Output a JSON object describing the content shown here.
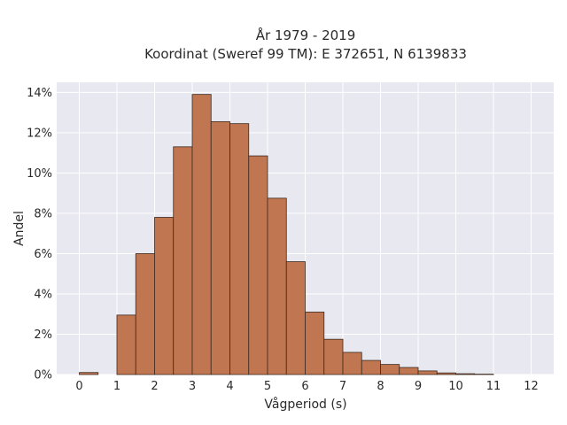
{
  "chart_data": {
    "type": "bar",
    "title_line1": "År 1979 - 2019",
    "title_line2": "Koordinat (Sweref 99 TM): E 372651, N 6139833",
    "xlabel": "Vågperiod (s)",
    "ylabel": "Andel",
    "xlim": [
      -0.6,
      12.6
    ],
    "ylim": [
      0,
      14.5
    ],
    "x_ticks": [
      0,
      1,
      2,
      3,
      4,
      5,
      6,
      7,
      8,
      9,
      10,
      11,
      12
    ],
    "x_tick_labels": [
      "0",
      "1",
      "2",
      "3",
      "4",
      "5",
      "6",
      "7",
      "8",
      "9",
      "10",
      "11",
      "12"
    ],
    "y_ticks": [
      0,
      2,
      4,
      6,
      8,
      10,
      12,
      14
    ],
    "y_tick_labels": [
      "0%",
      "2%",
      "4%",
      "6%",
      "8%",
      "10%",
      "12%",
      "14%"
    ],
    "grid": true,
    "bin_width": 0.5,
    "bins": [
      {
        "start": 0.0,
        "end": 0.5,
        "value": 0.1
      },
      {
        "start": 1.0,
        "end": 1.5,
        "value": 2.95
      },
      {
        "start": 1.5,
        "end": 2.0,
        "value": 6.0
      },
      {
        "start": 2.0,
        "end": 2.5,
        "value": 7.8
      },
      {
        "start": 2.5,
        "end": 3.0,
        "value": 11.3
      },
      {
        "start": 3.0,
        "end": 3.5,
        "value": 13.9
      },
      {
        "start": 3.5,
        "end": 4.0,
        "value": 12.55
      },
      {
        "start": 4.0,
        "end": 4.5,
        "value": 12.45
      },
      {
        "start": 4.5,
        "end": 5.0,
        "value": 10.85
      },
      {
        "start": 5.0,
        "end": 5.5,
        "value": 8.75
      },
      {
        "start": 5.5,
        "end": 6.0,
        "value": 5.6
      },
      {
        "start": 6.0,
        "end": 6.5,
        "value": 3.1
      },
      {
        "start": 6.5,
        "end": 7.0,
        "value": 1.75
      },
      {
        "start": 7.0,
        "end": 7.5,
        "value": 1.1
      },
      {
        "start": 7.5,
        "end": 8.0,
        "value": 0.7
      },
      {
        "start": 8.0,
        "end": 8.5,
        "value": 0.5
      },
      {
        "start": 8.5,
        "end": 9.0,
        "value": 0.35
      },
      {
        "start": 9.0,
        "end": 9.5,
        "value": 0.18
      },
      {
        "start": 9.5,
        "end": 10.0,
        "value": 0.08
      },
      {
        "start": 10.0,
        "end": 10.5,
        "value": 0.04
      },
      {
        "start": 10.5,
        "end": 11.0,
        "value": 0.02
      }
    ],
    "colors": {
      "bar_fill": "#c07650",
      "bar_edge": "#3d2a1e",
      "plot_background": "#e8e8f0",
      "grid": "#ffffff"
    }
  }
}
